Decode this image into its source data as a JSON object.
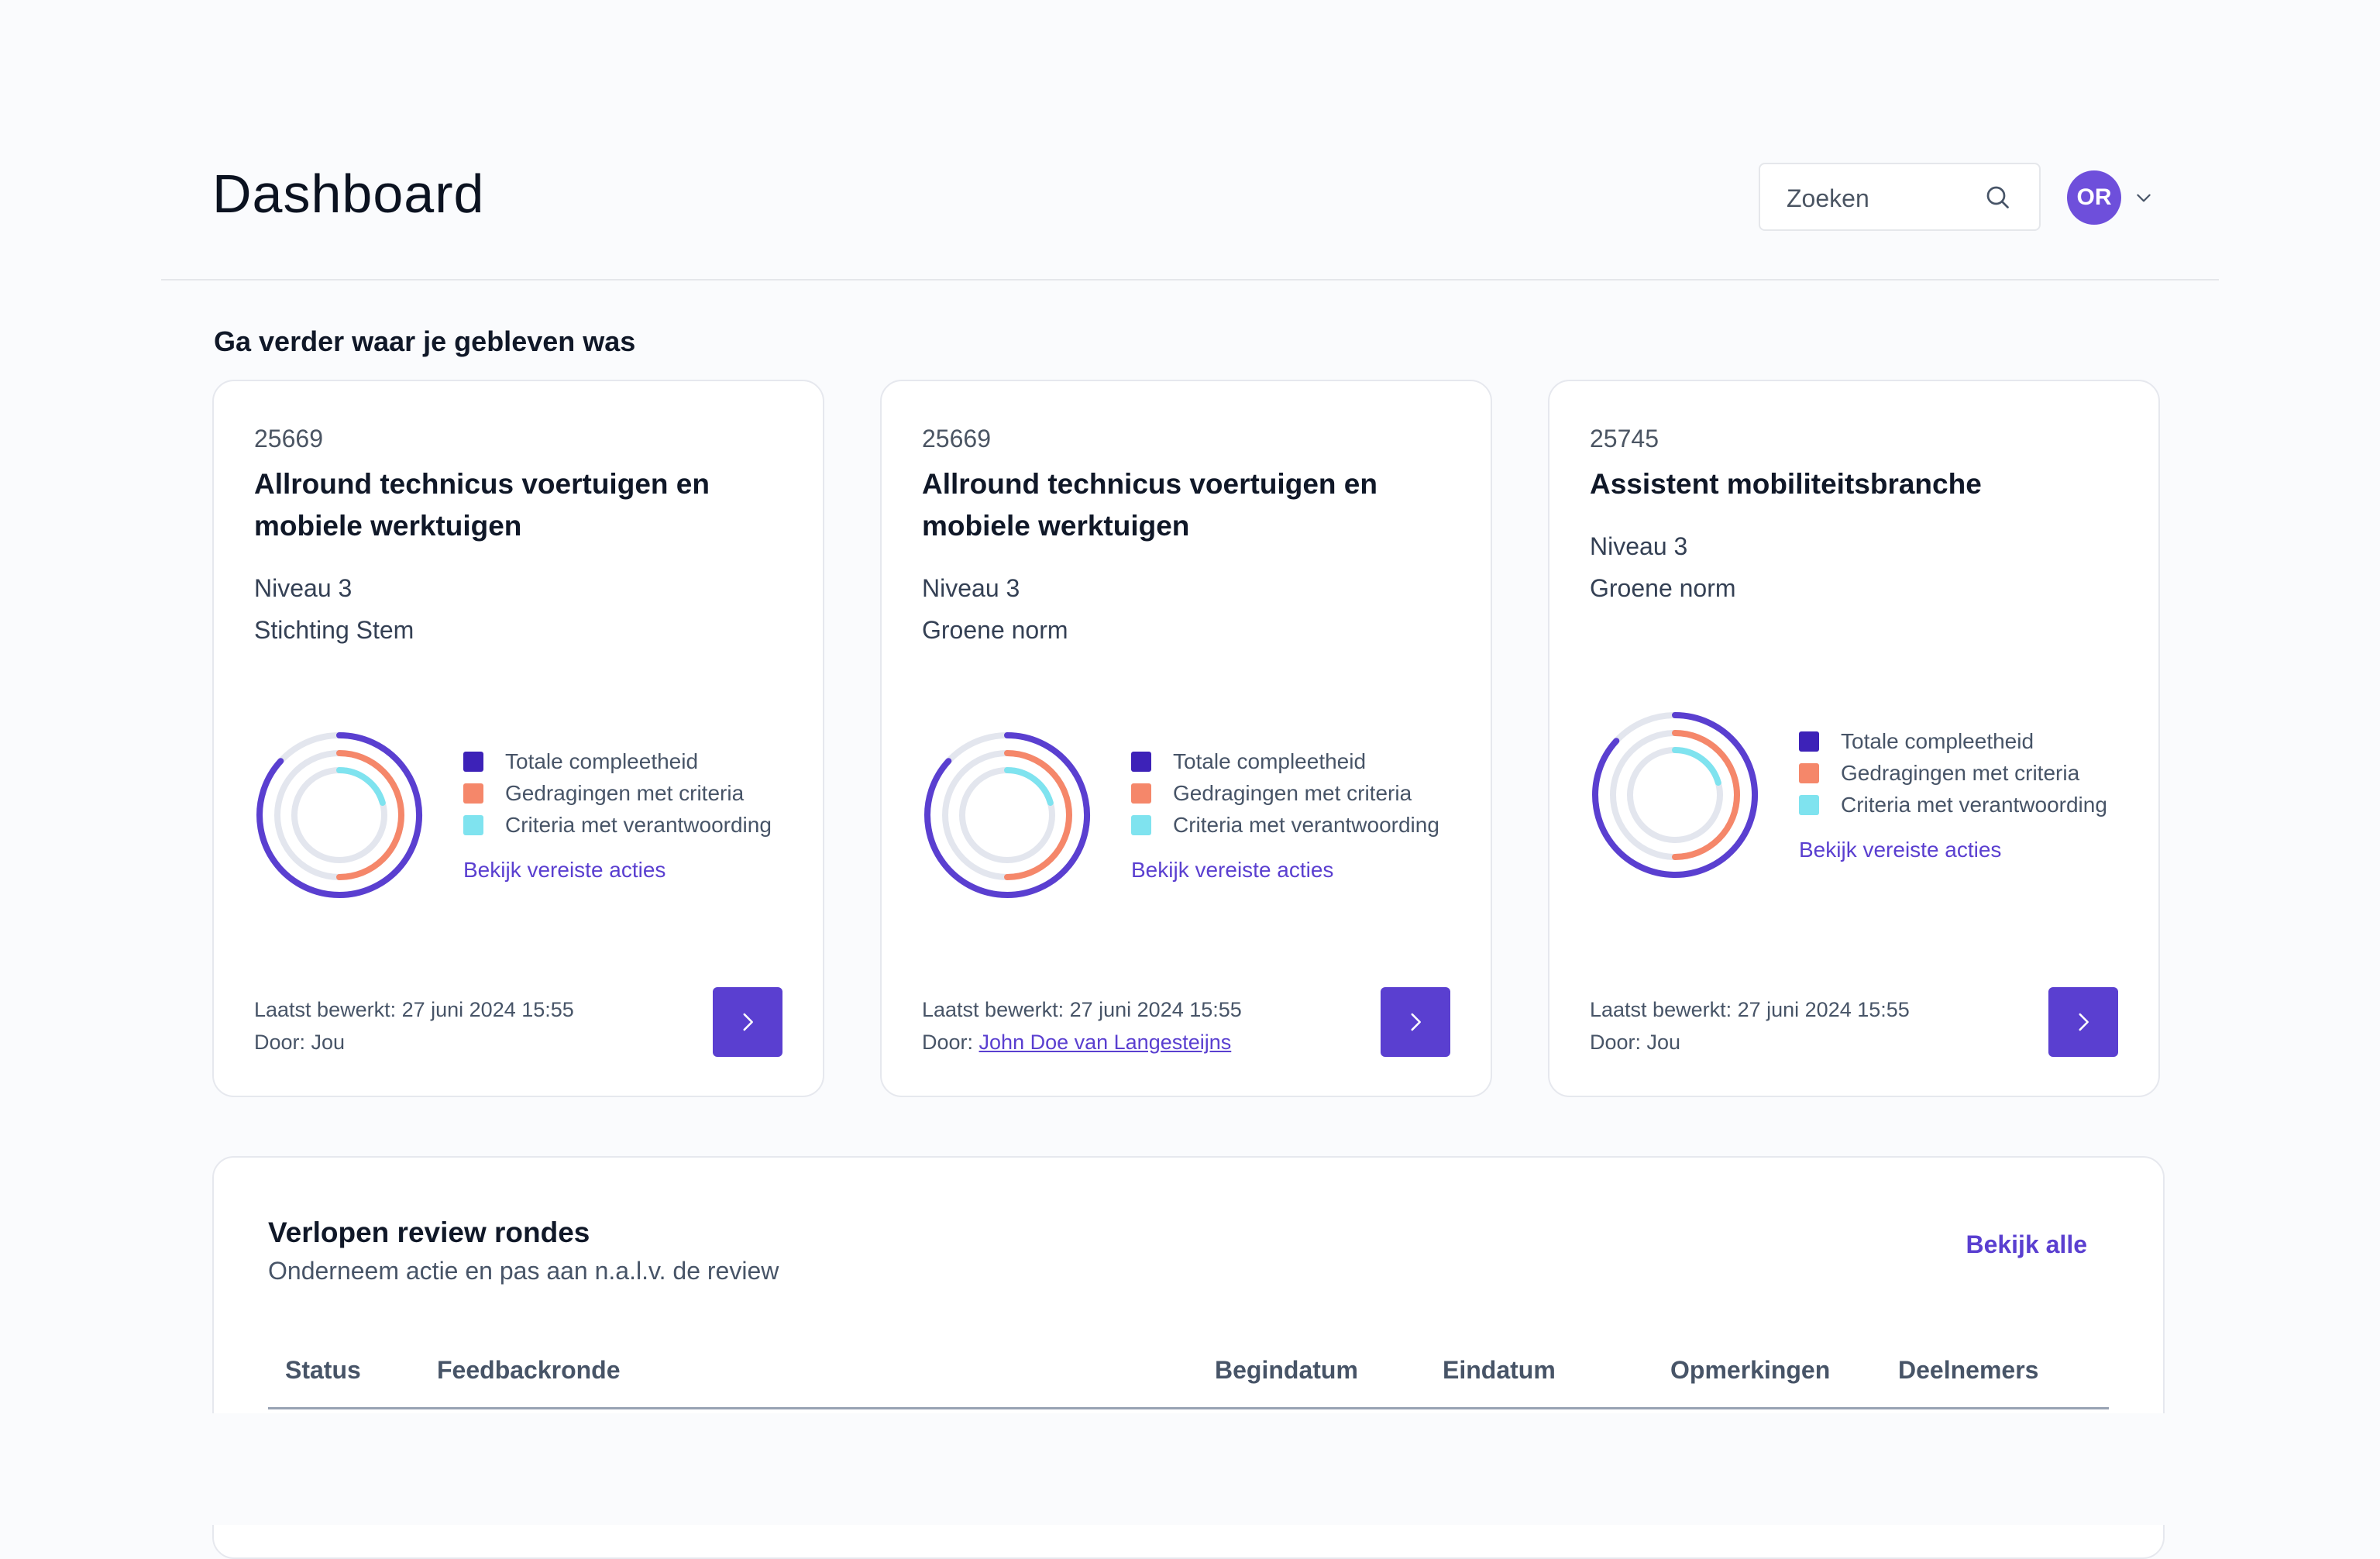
{
  "header": {
    "title": "Dashboard",
    "search_placeholder": "Zoeken",
    "avatar_initials": "OR"
  },
  "continue_section": {
    "title": "Ga verder waar je gebleven was",
    "cards": [
      {
        "code": "25669",
        "title": "Allround technicus voertuigen en mobiele werktuigen",
        "level": "Niveau 3",
        "organisation": "Stichting Stem",
        "legend": [
          "Totale compleetheid",
          "Gedragingen met criteria",
          "Criteria met verantwoording"
        ],
        "actions_link": "Bekijk vereiste acties",
        "last_edited": "Laatst bewerkt: 27 juni 2024 15:55",
        "by_label": "Door: ",
        "by_user": "Jou",
        "by_user_is_link": false
      },
      {
        "code": "25669",
        "title": "Allround technicus voertuigen en mobiele werktuigen",
        "level": "Niveau 3",
        "organisation": "Groene norm",
        "legend": [
          "Totale compleetheid",
          "Gedragingen met criteria",
          "Criteria met verantwoording"
        ],
        "actions_link": "Bekijk vereiste acties",
        "last_edited": "Laatst bewerkt: 27 juni 2024 15:55",
        "by_label": "Door: ",
        "by_user": "John Doe van Langesteijns",
        "by_user_is_link": true
      },
      {
        "code": "25745",
        "title": "Assistent mobiliteitsbranche",
        "level": "Niveau 3",
        "organisation": "Groene norm",
        "legend": [
          "Totale compleetheid",
          "Gedragingen met criteria",
          "Criteria met verantwoording"
        ],
        "actions_link": "Bekijk vereiste acties",
        "last_edited": "Laatst bewerkt: 27 juni 2024 15:55",
        "by_label": "Door: ",
        "by_user": "Jou",
        "by_user_is_link": false
      }
    ]
  },
  "review": {
    "title": "Verlopen review rondes",
    "subtitle": "Onderneem actie en pas aan n.a.l.v. de review",
    "view_all": "Bekijk alle",
    "columns": [
      "Status",
      "Feedbackronde",
      "Begindatum",
      "Eindatum",
      "Opmerkingen",
      "Deelnemers"
    ]
  },
  "colors": {
    "accent": "#5a3fd0",
    "avatar": "#6e4fdb",
    "ring_total": "#3d22b8",
    "ring_behaviour": "#f5876a",
    "ring_criteria": "#7fe3ef",
    "ring_track": "#e3e6ee"
  }
}
